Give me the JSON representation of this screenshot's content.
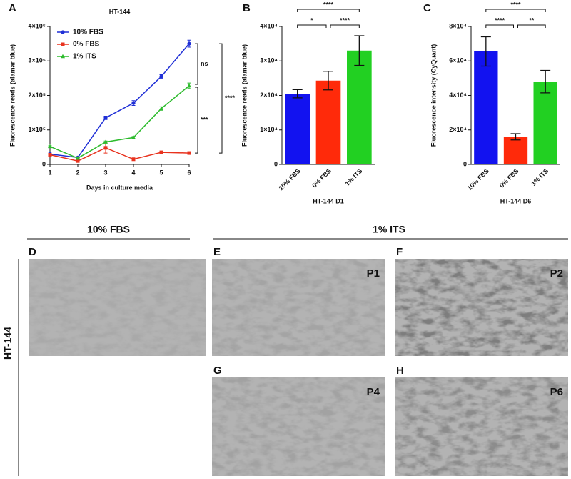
{
  "figure": {
    "panel_labels": [
      "A",
      "B",
      "C",
      "D",
      "E",
      "F",
      "G",
      "H"
    ],
    "headers": [
      "10% FBS",
      "1% ITS"
    ],
    "row_label": "HT-144",
    "passages": [
      "P1",
      "P2",
      "P4",
      "P6"
    ]
  },
  "chart_data": [
    {
      "type": "line",
      "title": "HT-144",
      "x_label": "Days in culture media",
      "y_label": "Fluorescence reads (alamar blue)",
      "x": [
        1,
        2,
        3,
        4,
        5,
        6
      ],
      "xlim": [
        1,
        6
      ],
      "xticks": [
        1,
        2,
        3,
        4,
        5,
        6
      ],
      "ylim": [
        0,
        400000
      ],
      "yticks": [
        0,
        {
          "value": 100000,
          "label": "1×10⁵"
        },
        {
          "value": 200000,
          "label": "2×10⁵"
        },
        {
          "value": 300000,
          "label": "3×10⁵"
        },
        {
          "value": 400000,
          "label": "4×10⁵"
        }
      ],
      "legend": "upper left",
      "series": [
        {
          "name": "10% FBS",
          "color": "#1f2fd6",
          "marker": "circle",
          "values": [
            30000,
            20000,
            135000,
            178000,
            255000,
            350000
          ],
          "errors": [
            3000,
            2000,
            5000,
            7000,
            5000,
            10000
          ]
        },
        {
          "name": "0% FBS",
          "color": "#e8321e",
          "marker": "square",
          "values": [
            28000,
            10000,
            48000,
            15000,
            35000,
            33000
          ],
          "errors": [
            3000,
            2000,
            15000,
            2000,
            2000,
            3000
          ]
        },
        {
          "name": "1% ITS",
          "color": "#2dbb2d",
          "marker": "triangle",
          "values": [
            52000,
            18000,
            65000,
            78000,
            162000,
            228000
          ],
          "errors": [
            2000,
            2000,
            3000,
            3000,
            5000,
            8000
          ]
        }
      ],
      "annotations": [
        "ns",
        "***",
        "****"
      ]
    },
    {
      "type": "bar",
      "x_label": "HT-144 D1",
      "y_label": "Fluorescence reads (alamar blue)",
      "categories": [
        "10% FBS",
        "0% FBS",
        "1% ITS"
      ],
      "values": [
        20500,
        24300,
        33000
      ],
      "errors": [
        1200,
        2700,
        4300
      ],
      "colors": [
        "#1212f0",
        "#ff2a0a",
        "#22d022"
      ],
      "ylim": [
        0,
        40000
      ],
      "yticks": [
        0,
        {
          "value": 10000,
          "label": "1×10⁴"
        },
        {
          "value": 20000,
          "label": "2×10⁴"
        },
        {
          "value": 30000,
          "label": "3×10⁴"
        },
        {
          "value": 40000,
          "label": "4×10⁴"
        }
      ],
      "annotations": [
        "*",
        "****",
        "****"
      ]
    },
    {
      "type": "bar",
      "x_label": "HT-144 D6",
      "y_label": "Fluorescence intensity (CyQuant)",
      "categories": [
        "10% FBS",
        "0% FBS",
        "1% ITS"
      ],
      "values": [
        65500,
        16000,
        48000
      ],
      "errors": [
        8500,
        1800,
        6500
      ],
      "colors": [
        "#1212f0",
        "#ff2a0a",
        "#22d022"
      ],
      "ylim": [
        0,
        80000
      ],
      "yticks": [
        0,
        {
          "value": 20000,
          "label": "2×10⁴"
        },
        {
          "value": 40000,
          "label": "4×10⁴"
        },
        {
          "value": 60000,
          "label": "6×10⁴"
        },
        {
          "value": 80000,
          "label": "8×10⁴"
        }
      ],
      "annotations": [
        "****",
        "**",
        "****"
      ]
    }
  ]
}
